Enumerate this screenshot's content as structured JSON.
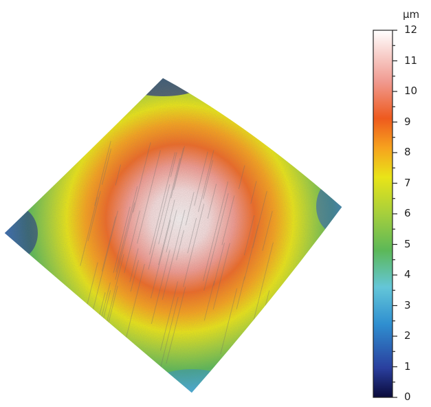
{
  "colorbar": {
    "unit": "µm",
    "ticks": [
      "0",
      "1",
      "2",
      "3",
      "4",
      "5",
      "6",
      "7",
      "8",
      "9",
      "10",
      "11",
      "12"
    ],
    "min": 0,
    "max": 12,
    "colors": [
      "#0a0a3a",
      "#2a3f9e",
      "#2f8fd0",
      "#64c6d8",
      "#5cb858",
      "#a6cf3c",
      "#e9e418",
      "#f6a21e",
      "#ee5a1e",
      "#f09a90",
      "#ffffff"
    ]
  }
}
